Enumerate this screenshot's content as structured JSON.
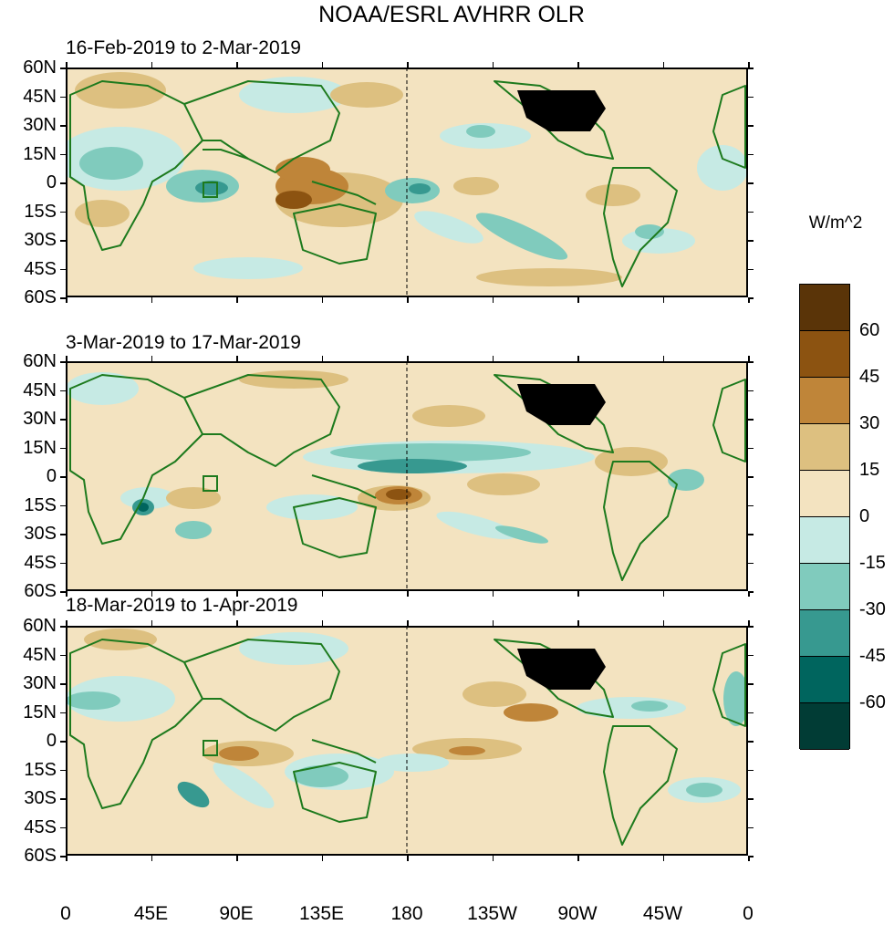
{
  "title": "NOAA/ESRL AVHRR OLR",
  "panels": [
    {
      "period": "16-Feb-2019 to 2-Mar-2019"
    },
    {
      "period": "3-Mar-2019 to 17-Mar-2019"
    },
    {
      "period": "18-Mar-2019 to 1-Apr-2019"
    }
  ],
  "y_axis": {
    "labels": [
      "60N",
      "45N",
      "30N",
      "15N",
      "0",
      "15S",
      "30S",
      "45S",
      "60S"
    ]
  },
  "x_axis": {
    "labels": [
      "0",
      "45E",
      "90E",
      "135E",
      "180",
      "135W",
      "90W",
      "45W",
      "0"
    ]
  },
  "legend": {
    "units": "W/m^2",
    "labels": [
      "60",
      "45",
      "30",
      "15",
      "0",
      "-15",
      "-30",
      "-45",
      "-60"
    ],
    "colors": [
      "#5a3408",
      "#8c5311",
      "#bf8539",
      "#ddc080",
      "#f3e3c0",
      "#c6eae4",
      "#80cbbd",
      "#379990",
      "#00655e",
      "#013c35"
    ]
  },
  "colors": {
    "coast": "#1d7a1d",
    "positive": "#ddc080",
    "positive_strong": "#bf8539",
    "negative": "#c6eae4",
    "negative_strong": "#80cbbd",
    "usa_fill": "#000000"
  }
}
